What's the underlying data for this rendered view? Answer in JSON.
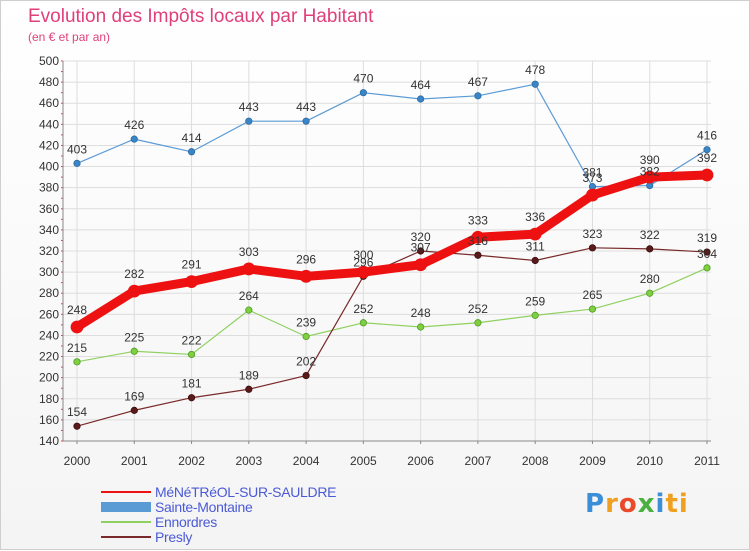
{
  "header": {
    "title": "Evolution des Impôts locaux par Habitant",
    "subtitle": "(en € et par an)"
  },
  "logo": {
    "text": "Proxiti",
    "letters": [
      "P",
      "r",
      "o",
      "x",
      "i",
      "ti"
    ]
  },
  "chart_data": {
    "type": "line",
    "title": "Evolution des Impôts locaux par Habitant",
    "subtitle": "(en € et par an)",
    "xlabel": "",
    "ylabel": "",
    "x": [
      "2000",
      "2001",
      "2002",
      "2003",
      "2004",
      "2005",
      "2006",
      "2007",
      "2008",
      "2009",
      "2010",
      "2011"
    ],
    "ylim": [
      140,
      500
    ],
    "yticks": [
      "140",
      "160",
      "180",
      "200",
      "220",
      "240",
      "260",
      "280",
      "300",
      "320",
      "340",
      "360",
      "380",
      "400",
      "420",
      "440",
      "460",
      "480",
      "500"
    ],
    "grid": true,
    "legend_position": "bottom-left",
    "series": [
      {
        "name": "Sainte-Montaine",
        "color": "#5b9bd5",
        "values": [
          403,
          426,
          414,
          443,
          443,
          470,
          464,
          467,
          478,
          381,
          382,
          416
        ]
      },
      {
        "name": "Ennordres",
        "color": "#90d060",
        "values": [
          215,
          225,
          222,
          264,
          239,
          252,
          248,
          252,
          259,
          265,
          280,
          304
        ]
      },
      {
        "name": "Presly",
        "color": "#7a2a2a",
        "values": [
          154,
          169,
          181,
          189,
          202,
          296,
          320,
          316,
          311,
          323,
          322,
          319
        ]
      },
      {
        "name": "MéNéTRéOL-SUR-SAULDRE",
        "color": "#ee1111",
        "values": [
          248,
          282,
          291,
          303,
          296,
          300,
          307,
          333,
          336,
          373,
          390,
          392
        ]
      }
    ],
    "labels": [
      [
        "403",
        "426",
        "414",
        "443",
        "443",
        "470",
        "464",
        "467",
        "478",
        "381",
        "382",
        "416"
      ],
      [
        "215",
        "225",
        "222",
        "264",
        "239",
        "252",
        "248",
        "252",
        "259",
        "265",
        "280",
        "304"
      ],
      [
        "154",
        "169",
        "181",
        "189",
        "202",
        "296",
        "320",
        "316",
        "311",
        "323",
        "322",
        "319"
      ],
      [
        "248",
        "282",
        "291",
        "303",
        "296",
        "300",
        "307",
        "333",
        "336",
        "373",
        "390",
        "392"
      ]
    ],
    "legend_order": [
      3,
      0,
      1,
      2
    ]
  }
}
